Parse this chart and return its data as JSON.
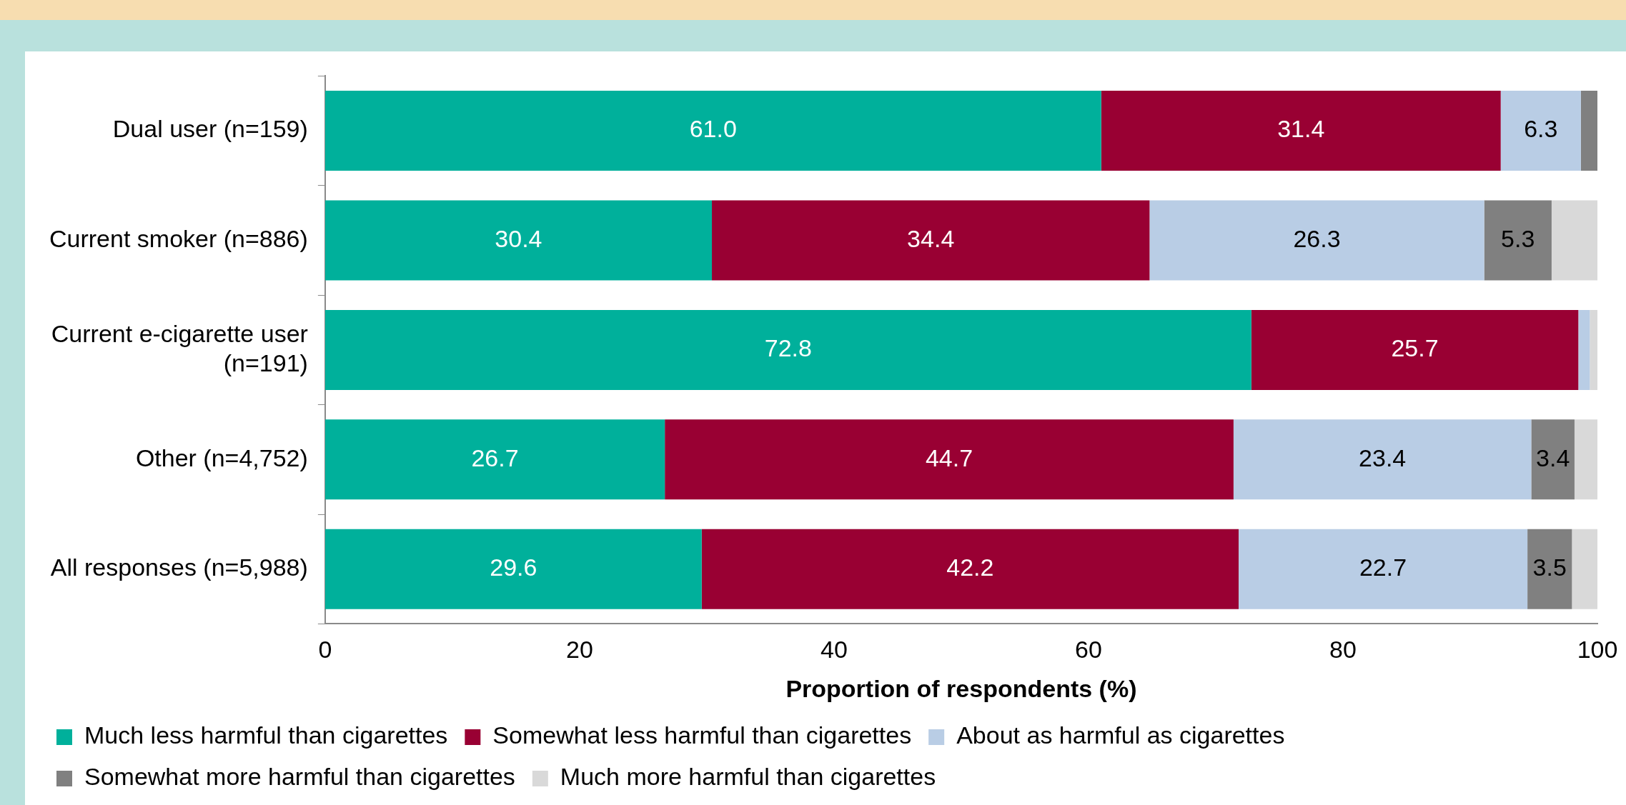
{
  "chart_data": {
    "type": "bar",
    "orientation": "horizontal",
    "stacked": true,
    "xlabel": "Proportion of respondents (%)",
    "categories": [
      "Dual user (n=159)",
      "Current smoker (n=886)",
      "Current e-cigarette user\n(n=191)",
      "Other (n=4,752)",
      "All responses (n=5,988)"
    ],
    "series": [
      {
        "name": "Much less harmful than cigarettes",
        "color": "#00b09b",
        "values": [
          61.0,
          30.4,
          72.8,
          26.7,
          29.6
        ],
        "value_labels": [
          "61.0",
          "30.4",
          "72.8",
          "26.7",
          "29.6"
        ]
      },
      {
        "name": "Somewhat less harmful than cigarettes",
        "color": "#990033",
        "values": [
          31.4,
          34.4,
          25.7,
          44.7,
          42.2
        ],
        "value_labels": [
          "31.4",
          "34.4",
          "25.7",
          "44.7",
          "42.2"
        ]
      },
      {
        "name": "About as harmful as cigarettes",
        "color": "#b9cde5",
        "values": [
          6.3,
          26.3,
          0.9,
          23.4,
          22.7
        ],
        "value_labels": [
          "6.3",
          "26.3",
          null,
          "23.4",
          "22.7"
        ]
      },
      {
        "name": "Somewhat more harmful than cigarettes",
        "color": "#808080",
        "values": [
          1.3,
          5.3,
          0,
          3.4,
          3.5
        ],
        "value_labels": [
          null,
          "5.3",
          null,
          "3.4",
          "3.5"
        ]
      },
      {
        "name": "Much more harmful than cigarettes",
        "color": "#d9d9d9",
        "values": [
          0,
          3.6,
          0.6,
          1.8,
          2.0
        ],
        "value_labels": [
          null,
          null,
          null,
          null,
          null
        ]
      }
    ],
    "xlim": [
      0,
      100
    ],
    "xticks": [
      0,
      20,
      40,
      60,
      80,
      100
    ],
    "grid": false,
    "legend": "bottom"
  }
}
